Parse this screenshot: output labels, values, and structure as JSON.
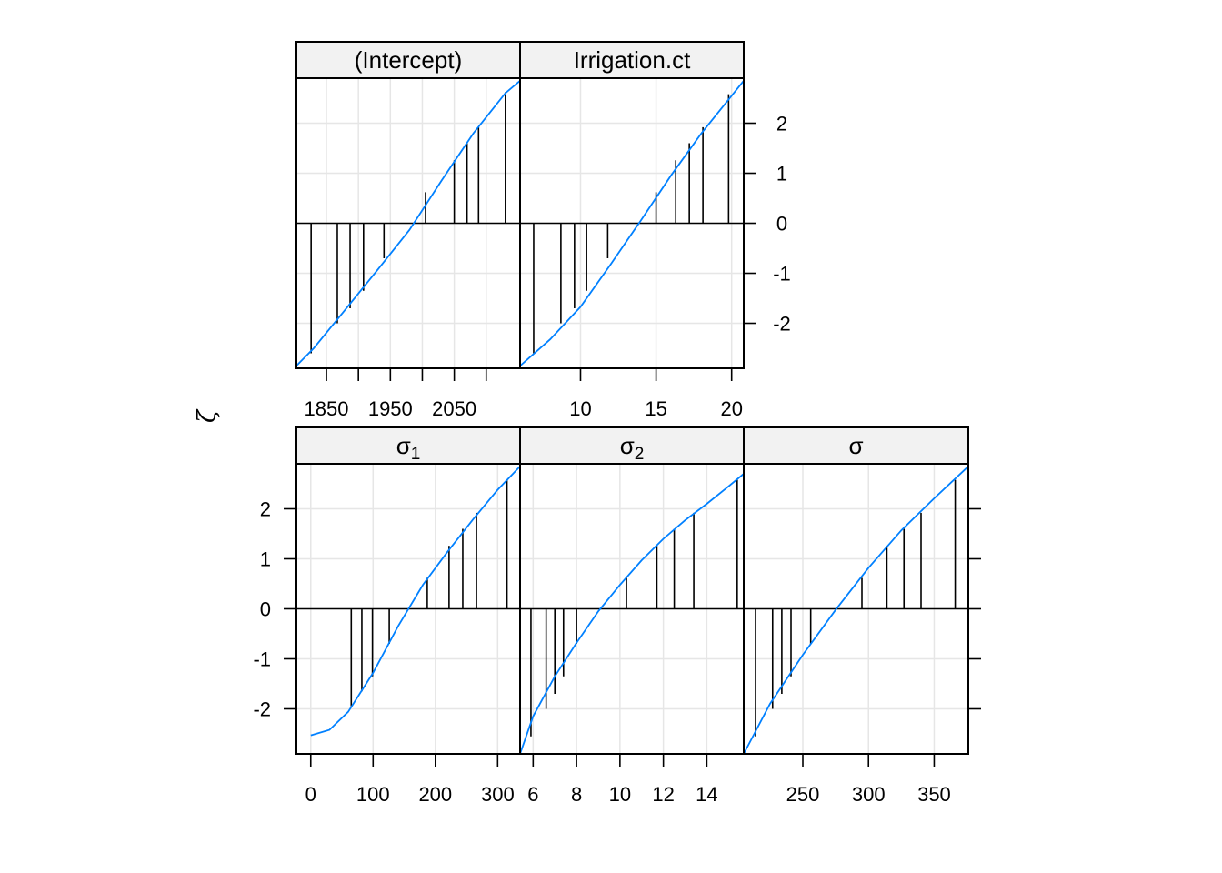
{
  "y_axis_label": "ζ",
  "colors": {
    "curve": "#0080ff",
    "spike": "#000000",
    "strip_bg": "#f2f2f2",
    "grid": "#e6e6e6",
    "border": "#000000"
  },
  "chart_data": [
    {
      "type": "line",
      "strip": "(Intercept)",
      "xlim": [
        1803,
        2153
      ],
      "ylim": [
        -2.9,
        2.9
      ],
      "x_ticks": [
        1850,
        1900,
        1950,
        2000,
        2050,
        2100
      ],
      "x_tick_labels": [
        "1850",
        "",
        "1950",
        "",
        "2050",
        ""
      ],
      "y_ticks": [
        -2,
        -1,
        0,
        1,
        2
      ],
      "curve": {
        "x": [
          1803,
          1830,
          1880,
          1930,
          1980,
          2030,
          2080,
          2130,
          2153
        ],
        "y": [
          -2.85,
          -2.5,
          -1.72,
          -0.93,
          -0.13,
          0.85,
          1.8,
          2.6,
          2.85
        ]
      },
      "spikes": {
        "x": [
          1826,
          1867,
          1887,
          1908,
          1940,
          2005,
          2050,
          2070,
          2088,
          2130
        ],
        "y": [
          -2.6,
          -2.0,
          -1.7,
          -1.35,
          -0.7,
          0.62,
          1.26,
          1.6,
          1.92,
          2.62
        ]
      }
    },
    {
      "type": "line",
      "strip": "Irrigation.ct",
      "xlim": [
        6.0,
        20.8
      ],
      "ylim": [
        -2.9,
        2.9
      ],
      "x_ticks": [
        10,
        15,
        20
      ],
      "x_tick_labels": [
        "10",
        "15",
        "20"
      ],
      "y_ticks": [
        -2,
        -1,
        0,
        1,
        2
      ],
      "curve": {
        "x": [
          6.0,
          8.0,
          10.0,
          12.0,
          14.0,
          16.0,
          18.0,
          20.0,
          20.8
        ],
        "y": [
          -2.85,
          -2.32,
          -1.67,
          -0.82,
          0.06,
          0.96,
          1.8,
          2.55,
          2.85
        ]
      },
      "spikes": {
        "x": [
          6.9,
          8.7,
          9.6,
          10.4,
          11.8,
          15.0,
          16.3,
          17.2,
          18.1,
          19.8
        ],
        "y": [
          -2.6,
          -2.0,
          -1.7,
          -1.35,
          -0.7,
          0.62,
          1.26,
          1.6,
          1.92,
          2.58
        ]
      }
    },
    {
      "type": "line",
      "strip": "σ",
      "strip_sub": "1",
      "xlim": [
        -23,
        336
      ],
      "ylim": [
        -2.9,
        2.9
      ],
      "x_ticks": [
        0,
        100,
        200,
        300
      ],
      "x_tick_labels": [
        "0",
        "100",
        "200",
        "300"
      ],
      "y_ticks": [
        -2,
        -1,
        0,
        1,
        2
      ],
      "curve": {
        "x": [
          0,
          30,
          60,
          100,
          140,
          180,
          220,
          260,
          300,
          336
        ],
        "y": [
          -2.53,
          -2.42,
          -2.06,
          -1.28,
          -0.35,
          0.48,
          1.15,
          1.78,
          2.38,
          2.85
        ]
      },
      "spikes": {
        "x": [
          65,
          82,
          99,
          126,
          187,
          222,
          244,
          266,
          315
        ],
        "y": [
          -1.95,
          -1.65,
          -1.35,
          -0.7,
          0.62,
          1.26,
          1.6,
          1.92,
          2.58
        ]
      }
    },
    {
      "type": "line",
      "strip": "σ",
      "strip_sub": "2",
      "xlim": [
        5.4,
        15.7
      ],
      "ylim": [
        -2.9,
        2.9
      ],
      "x_ticks": [
        6,
        8,
        10,
        12,
        14
      ],
      "x_tick_labels": [
        "6",
        "8",
        "10",
        "12",
        "14"
      ],
      "y_ticks": [
        -2,
        -1,
        0,
        1,
        2
      ],
      "curve": {
        "x": [
          5.4,
          6.0,
          7.0,
          8.0,
          9.0,
          10.0,
          11.0,
          12.0,
          13.0,
          14.0,
          15.0,
          15.7
        ],
        "y": [
          -2.9,
          -2.15,
          -1.35,
          -0.68,
          -0.05,
          0.48,
          0.97,
          1.4,
          1.77,
          2.1,
          2.45,
          2.7
        ]
      },
      "spikes": {
        "x": [
          5.9,
          6.6,
          7.0,
          7.4,
          8.0,
          10.3,
          11.7,
          12.5,
          13.4,
          15.4
        ],
        "y": [
          -2.55,
          -2.0,
          -1.7,
          -1.35,
          -0.7,
          0.62,
          1.26,
          1.6,
          1.92,
          2.58
        ]
      }
    },
    {
      "type": "line",
      "strip": "σ",
      "xlim": [
        205,
        376
      ],
      "ylim": [
        -2.9,
        2.9
      ],
      "x_ticks": [
        250,
        300,
        350
      ],
      "x_tick_labels": [
        "250",
        "300",
        "350"
      ],
      "y_ticks": [
        -2,
        -1,
        0,
        1,
        2
      ],
      "curve": {
        "x": [
          205,
          225,
          250,
          275,
          300,
          325,
          350,
          376
        ],
        "y": [
          -2.9,
          -1.9,
          -0.92,
          -0.02,
          0.82,
          1.57,
          2.21,
          2.85
        ]
      },
      "spikes": {
        "x": [
          214,
          227,
          234,
          241,
          256,
          295,
          314,
          327,
          340,
          366
        ],
        "y": [
          -2.55,
          -2.0,
          -1.7,
          -1.35,
          -0.7,
          0.62,
          1.26,
          1.6,
          1.92,
          2.58
        ]
      }
    }
  ]
}
